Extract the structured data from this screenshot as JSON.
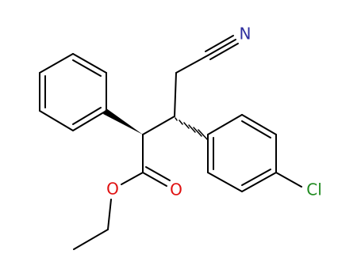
{
  "atoms": [
    {
      "label": "N"
    },
    {
      "label": "O"
    },
    {
      "label": "O"
    },
    {
      "label": "Cl"
    }
  ]
}
